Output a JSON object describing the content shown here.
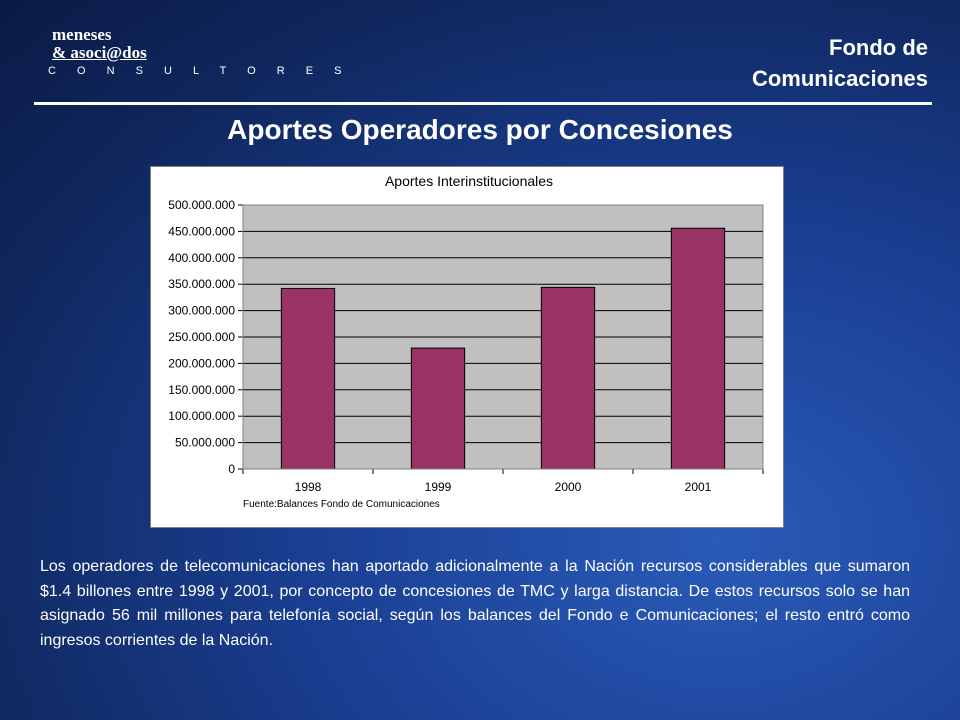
{
  "header": {
    "logo": {
      "line1": "meneses",
      "line2": "& asoci@dos",
      "line3": "C O N S U L T O R E S"
    },
    "org_line1": "Fondo de",
    "org_line2": "Comunicaciones"
  },
  "slide": {
    "title": "Aportes Operadores por Concesiones",
    "description": "Los operadores de telecomunicaciones han aportado  adicionalmente a la Nación recursos considerables que sumaron $1.4 billones entre 1998 y 2001, por concepto de concesiones de TMC y larga distancia. De estos recursos solo se han asignado 56 mil millones para telefonía social, según los balances del Fondo e Comunicaciones;    el resto entró como ingresos corrientes de la Nación."
  },
  "colors": {
    "bar": "#993366",
    "plot_bg": "#c0c0c0"
  },
  "chart_data": {
    "type": "bar",
    "title": "Aportes Interinstitucionales",
    "source_note": "Fuente:Balances Fondo de Comunicaciones",
    "categories": [
      "1998",
      "1999",
      "2000",
      "2001"
    ],
    "values": [
      342000000,
      229000000,
      344000000,
      456000000
    ],
    "ylim": [
      0,
      500000000
    ],
    "yticks": [
      0,
      50000000,
      100000000,
      150000000,
      200000000,
      250000000,
      300000000,
      350000000,
      400000000,
      450000000,
      500000000
    ],
    "ytick_labels": [
      "0",
      "50.000.000",
      "100.000.000",
      "150.000.000",
      "200.000.000",
      "250.000.000",
      "300.000.000",
      "350.000.000",
      "400.000.000",
      "450.000.000",
      "500.000.000"
    ],
    "grid": true,
    "legend": "none"
  }
}
